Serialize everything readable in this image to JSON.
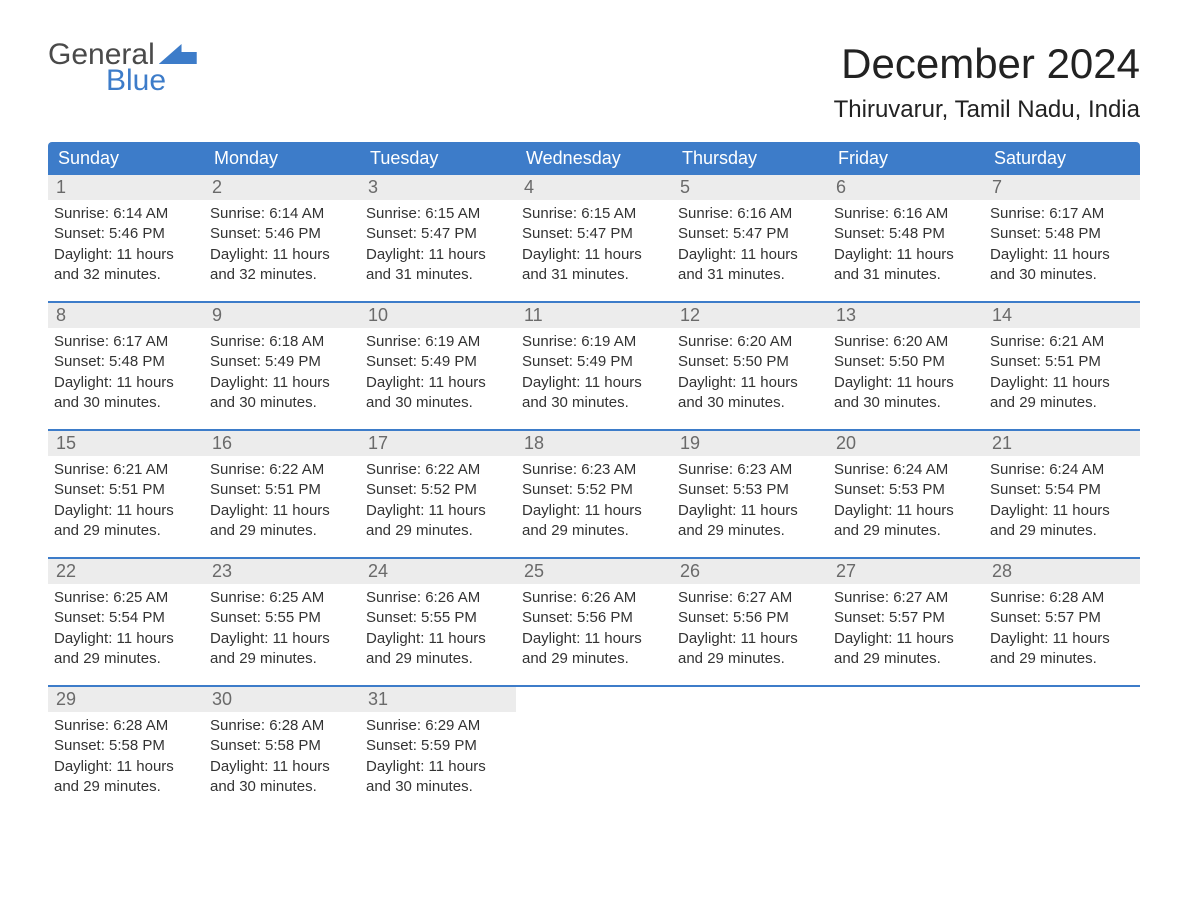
{
  "logo": {
    "top": "General",
    "bottom": "Blue"
  },
  "header": {
    "month_title": "December 2024",
    "location": "Thiruvarur, Tamil Nadu, India"
  },
  "colors": {
    "header_bg": "#3d7cc9",
    "daynum_bg": "#ececec",
    "text": "#333333",
    "muted": "#6a6a6a"
  },
  "weekdays": [
    "Sunday",
    "Monday",
    "Tuesday",
    "Wednesday",
    "Thursday",
    "Friday",
    "Saturday"
  ],
  "weeks": [
    [
      {
        "n": "1",
        "sunrise": "Sunrise: 6:14 AM",
        "sunset": "Sunset: 5:46 PM",
        "day1": "Daylight: 11 hours",
        "day2": "and 32 minutes."
      },
      {
        "n": "2",
        "sunrise": "Sunrise: 6:14 AM",
        "sunset": "Sunset: 5:46 PM",
        "day1": "Daylight: 11 hours",
        "day2": "and 32 minutes."
      },
      {
        "n": "3",
        "sunrise": "Sunrise: 6:15 AM",
        "sunset": "Sunset: 5:47 PM",
        "day1": "Daylight: 11 hours",
        "day2": "and 31 minutes."
      },
      {
        "n": "4",
        "sunrise": "Sunrise: 6:15 AM",
        "sunset": "Sunset: 5:47 PM",
        "day1": "Daylight: 11 hours",
        "day2": "and 31 minutes."
      },
      {
        "n": "5",
        "sunrise": "Sunrise: 6:16 AM",
        "sunset": "Sunset: 5:47 PM",
        "day1": "Daylight: 11 hours",
        "day2": "and 31 minutes."
      },
      {
        "n": "6",
        "sunrise": "Sunrise: 6:16 AM",
        "sunset": "Sunset: 5:48 PM",
        "day1": "Daylight: 11 hours",
        "day2": "and 31 minutes."
      },
      {
        "n": "7",
        "sunrise": "Sunrise: 6:17 AM",
        "sunset": "Sunset: 5:48 PM",
        "day1": "Daylight: 11 hours",
        "day2": "and 30 minutes."
      }
    ],
    [
      {
        "n": "8",
        "sunrise": "Sunrise: 6:17 AM",
        "sunset": "Sunset: 5:48 PM",
        "day1": "Daylight: 11 hours",
        "day2": "and 30 minutes."
      },
      {
        "n": "9",
        "sunrise": "Sunrise: 6:18 AM",
        "sunset": "Sunset: 5:49 PM",
        "day1": "Daylight: 11 hours",
        "day2": "and 30 minutes."
      },
      {
        "n": "10",
        "sunrise": "Sunrise: 6:19 AM",
        "sunset": "Sunset: 5:49 PM",
        "day1": "Daylight: 11 hours",
        "day2": "and 30 minutes."
      },
      {
        "n": "11",
        "sunrise": "Sunrise: 6:19 AM",
        "sunset": "Sunset: 5:49 PM",
        "day1": "Daylight: 11 hours",
        "day2": "and 30 minutes."
      },
      {
        "n": "12",
        "sunrise": "Sunrise: 6:20 AM",
        "sunset": "Sunset: 5:50 PM",
        "day1": "Daylight: 11 hours",
        "day2": "and 30 minutes."
      },
      {
        "n": "13",
        "sunrise": "Sunrise: 6:20 AM",
        "sunset": "Sunset: 5:50 PM",
        "day1": "Daylight: 11 hours",
        "day2": "and 30 minutes."
      },
      {
        "n": "14",
        "sunrise": "Sunrise: 6:21 AM",
        "sunset": "Sunset: 5:51 PM",
        "day1": "Daylight: 11 hours",
        "day2": "and 29 minutes."
      }
    ],
    [
      {
        "n": "15",
        "sunrise": "Sunrise: 6:21 AM",
        "sunset": "Sunset: 5:51 PM",
        "day1": "Daylight: 11 hours",
        "day2": "and 29 minutes."
      },
      {
        "n": "16",
        "sunrise": "Sunrise: 6:22 AM",
        "sunset": "Sunset: 5:51 PM",
        "day1": "Daylight: 11 hours",
        "day2": "and 29 minutes."
      },
      {
        "n": "17",
        "sunrise": "Sunrise: 6:22 AM",
        "sunset": "Sunset: 5:52 PM",
        "day1": "Daylight: 11 hours",
        "day2": "and 29 minutes."
      },
      {
        "n": "18",
        "sunrise": "Sunrise: 6:23 AM",
        "sunset": "Sunset: 5:52 PM",
        "day1": "Daylight: 11 hours",
        "day2": "and 29 minutes."
      },
      {
        "n": "19",
        "sunrise": "Sunrise: 6:23 AM",
        "sunset": "Sunset: 5:53 PM",
        "day1": "Daylight: 11 hours",
        "day2": "and 29 minutes."
      },
      {
        "n": "20",
        "sunrise": "Sunrise: 6:24 AM",
        "sunset": "Sunset: 5:53 PM",
        "day1": "Daylight: 11 hours",
        "day2": "and 29 minutes."
      },
      {
        "n": "21",
        "sunrise": "Sunrise: 6:24 AM",
        "sunset": "Sunset: 5:54 PM",
        "day1": "Daylight: 11 hours",
        "day2": "and 29 minutes."
      }
    ],
    [
      {
        "n": "22",
        "sunrise": "Sunrise: 6:25 AM",
        "sunset": "Sunset: 5:54 PM",
        "day1": "Daylight: 11 hours",
        "day2": "and 29 minutes."
      },
      {
        "n": "23",
        "sunrise": "Sunrise: 6:25 AM",
        "sunset": "Sunset: 5:55 PM",
        "day1": "Daylight: 11 hours",
        "day2": "and 29 minutes."
      },
      {
        "n": "24",
        "sunrise": "Sunrise: 6:26 AM",
        "sunset": "Sunset: 5:55 PM",
        "day1": "Daylight: 11 hours",
        "day2": "and 29 minutes."
      },
      {
        "n": "25",
        "sunrise": "Sunrise: 6:26 AM",
        "sunset": "Sunset: 5:56 PM",
        "day1": "Daylight: 11 hours",
        "day2": "and 29 minutes."
      },
      {
        "n": "26",
        "sunrise": "Sunrise: 6:27 AM",
        "sunset": "Sunset: 5:56 PM",
        "day1": "Daylight: 11 hours",
        "day2": "and 29 minutes."
      },
      {
        "n": "27",
        "sunrise": "Sunrise: 6:27 AM",
        "sunset": "Sunset: 5:57 PM",
        "day1": "Daylight: 11 hours",
        "day2": "and 29 minutes."
      },
      {
        "n": "28",
        "sunrise": "Sunrise: 6:28 AM",
        "sunset": "Sunset: 5:57 PM",
        "day1": "Daylight: 11 hours",
        "day2": "and 29 minutes."
      }
    ],
    [
      {
        "n": "29",
        "sunrise": "Sunrise: 6:28 AM",
        "sunset": "Sunset: 5:58 PM",
        "day1": "Daylight: 11 hours",
        "day2": "and 29 minutes."
      },
      {
        "n": "30",
        "sunrise": "Sunrise: 6:28 AM",
        "sunset": "Sunset: 5:58 PM",
        "day1": "Daylight: 11 hours",
        "day2": "and 30 minutes."
      },
      {
        "n": "31",
        "sunrise": "Sunrise: 6:29 AM",
        "sunset": "Sunset: 5:59 PM",
        "day1": "Daylight: 11 hours",
        "day2": "and 30 minutes."
      },
      {
        "empty": true
      },
      {
        "empty": true
      },
      {
        "empty": true
      },
      {
        "empty": true
      }
    ]
  ]
}
